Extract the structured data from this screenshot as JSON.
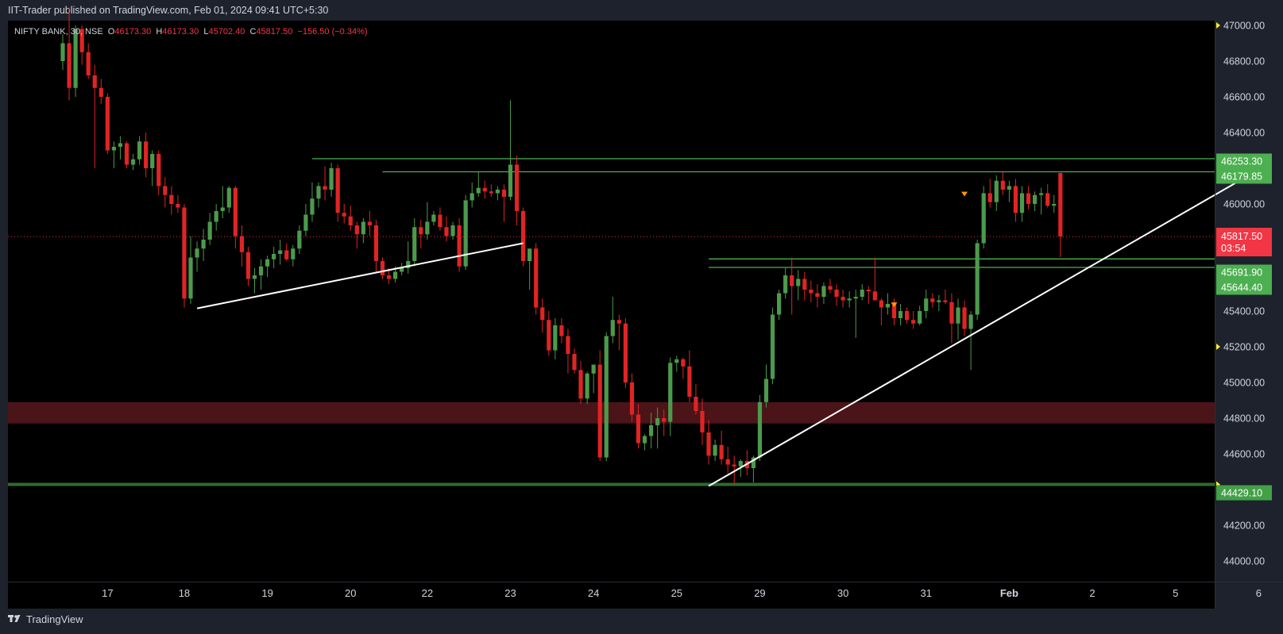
{
  "header": {
    "published_by": "IIT-Trader published on TradingView.com, Feb 01, 2024 09:41 UTC+5:30"
  },
  "legend": {
    "symbol": "NIFTY BANK, 30, NSE",
    "o_label": "O",
    "o": "46173.30",
    "h_label": "H",
    "h": "46173.30",
    "l_label": "L",
    "l": "45702.40",
    "c_label": "C",
    "c": "45817.50",
    "change": "−156.50 (−0.34%)"
  },
  "footer": {
    "brand": "TradingView",
    "logo_icon": "tradingview-logo-icon"
  },
  "colors": {
    "background": "#000000",
    "frame": "#1e222d",
    "up": "#4c9a4c",
    "down": "#e02424",
    "level": "#4caf50",
    "zone": "#4a1418",
    "trendline": "#ffffff",
    "price_tag": "#f23645"
  },
  "chart_data": {
    "type": "candlestick",
    "ylim": [
      44000,
      47000
    ],
    "y_ticks": [
      "47000.00",
      "46800.00",
      "46600.00",
      "46400.00",
      "46200.00",
      "46000.00",
      "45800.00",
      "45600.00",
      "45400.00",
      "45200.00",
      "45000.00",
      "44800.00",
      "44600.00",
      "44400.00",
      "44200.00",
      "44000.00"
    ],
    "x_ticks": [
      {
        "label": "17",
        "i": 7
      },
      {
        "label": "18",
        "i": 19
      },
      {
        "label": "19",
        "i": 32
      },
      {
        "label": "20",
        "i": 45
      },
      {
        "label": "22",
        "i": 57
      },
      {
        "label": "23",
        "i": 70
      },
      {
        "label": "24",
        "i": 83
      },
      {
        "label": "25",
        "i": 96
      },
      {
        "label": "29",
        "i": 109
      },
      {
        "label": "30",
        "i": 122
      },
      {
        "label": "31",
        "i": 135
      },
      {
        "label": "Feb",
        "i": 148
      },
      {
        "label": "2",
        "i": 161
      },
      {
        "label": "5",
        "i": 174
      },
      {
        "label": "6",
        "i": 187
      }
    ],
    "price_labels": [
      {
        "text": "46253.30",
        "value": 46253.3,
        "type": "level"
      },
      {
        "text": "46179.85",
        "value": 46179.85,
        "type": "level"
      },
      {
        "text": "45817.50",
        "value": 45817.5,
        "type": "current",
        "countdown": "03:54"
      },
      {
        "text": "45691.90",
        "value": 45691.9,
        "type": "level"
      },
      {
        "text": "45644.40",
        "value": 45644.4,
        "type": "level"
      },
      {
        "text": "44429.10",
        "value": 44429.1,
        "type": "level"
      }
    ],
    "horizontal_levels": [
      {
        "value": 46253.3,
        "from_i": 39
      },
      {
        "value": 46179.85,
        "from_i": 50
      },
      {
        "value": 45691.9,
        "from_i": 101
      },
      {
        "value": 45644.4,
        "from_i": 101
      },
      {
        "value": 44429.1,
        "from_i": -1
      }
    ],
    "zone": {
      "from": 44770,
      "to": 44890
    },
    "current_price": 45817.5,
    "trendlines": [
      {
        "i1": 21,
        "v1": 45415,
        "i2": 72,
        "v2": 45780
      },
      {
        "i1": 101,
        "v1": 44420,
        "i2": 184,
        "v2": 46130
      }
    ],
    "markers": [
      {
        "i": 130,
        "value": 45435
      },
      {
        "i": 141,
        "value": 46055
      }
    ],
    "candles": [
      [
        46800,
        46950,
        46750,
        46900
      ],
      [
        46900,
        47100,
        46580,
        46650
      ],
      [
        46650,
        47000,
        46600,
        46980
      ],
      [
        46980,
        47000,
        46780,
        46850
      ],
      [
        46850,
        46900,
        46700,
        46720
      ],
      [
        46720,
        46780,
        46200,
        46650
      ],
      [
        46650,
        46700,
        46560,
        46600
      ],
      [
        46600,
        46620,
        46280,
        46300
      ],
      [
        46300,
        46350,
        46200,
        46320
      ],
      [
        46320,
        46380,
        46250,
        46340
      ],
      [
        46340,
        46350,
        46200,
        46220
      ],
      [
        46220,
        46280,
        46190,
        46250
      ],
      [
        46250,
        46380,
        46220,
        46350
      ],
      [
        46350,
        46400,
        46150,
        46200
      ],
      [
        46200,
        46300,
        46100,
        46280
      ],
      [
        46280,
        46300,
        46050,
        46100
      ],
      [
        46100,
        46150,
        45980,
        46050
      ],
      [
        46050,
        46100,
        45940,
        46000
      ],
      [
        46000,
        46050,
        45950,
        45980
      ],
      [
        45980,
        46000,
        45420,
        45470
      ],
      [
        45470,
        45820,
        45440,
        45700
      ],
      [
        45700,
        45790,
        45620,
        45750
      ],
      [
        45750,
        45860,
        45680,
        45800
      ],
      [
        45800,
        45950,
        45770,
        45900
      ],
      [
        45900,
        46000,
        45850,
        45960
      ],
      [
        45960,
        46100,
        45920,
        45980
      ],
      [
        45980,
        46100,
        45950,
        46090
      ],
      [
        46090,
        46100,
        45750,
        45820
      ],
      [
        45820,
        45880,
        45650,
        45730
      ],
      [
        45730,
        45760,
        45540,
        45580
      ],
      [
        45580,
        45640,
        45500,
        45600
      ],
      [
        45600,
        45690,
        45520,
        45650
      ],
      [
        45650,
        45710,
        45590,
        45690
      ],
      [
        45690,
        45760,
        45640,
        45720
      ],
      [
        45720,
        45800,
        45660,
        45740
      ],
      [
        45740,
        45780,
        45680,
        45690
      ],
      [
        45690,
        45770,
        45650,
        45750
      ],
      [
        45750,
        45880,
        45720,
        45850
      ],
      [
        45850,
        46000,
        45820,
        45940
      ],
      [
        45940,
        46120,
        45900,
        46030
      ],
      [
        46030,
        46120,
        45980,
        46100
      ],
      [
        46100,
        46210,
        46020,
        46080
      ],
      [
        46080,
        46230,
        46040,
        46200
      ],
      [
        46200,
        46220,
        45900,
        45950
      ],
      [
        45950,
        46000,
        45890,
        45930
      ],
      [
        45930,
        45990,
        45850,
        45880
      ],
      [
        45880,
        45900,
        45750,
        45830
      ],
      [
        45830,
        45920,
        45780,
        45900
      ],
      [
        45900,
        45960,
        45820,
        45880
      ],
      [
        45880,
        45910,
        45620,
        45680
      ],
      [
        45680,
        45700,
        45580,
        45600
      ],
      [
        45600,
        45640,
        45550,
        45580
      ],
      [
        45580,
        45650,
        45560,
        45620
      ],
      [
        45620,
        45670,
        45600,
        45640
      ],
      [
        45640,
        45790,
        45610,
        45680
      ],
      [
        45680,
        45920,
        45650,
        45870
      ],
      [
        45870,
        45910,
        45750,
        45830
      ],
      [
        45830,
        46010,
        45800,
        45900
      ],
      [
        45900,
        45960,
        45880,
        45940
      ],
      [
        45940,
        45980,
        45850,
        45870
      ],
      [
        45870,
        45930,
        45790,
        45820
      ],
      [
        45820,
        45900,
        45800,
        45880
      ],
      [
        45880,
        45920,
        45620,
        45650
      ],
      [
        45650,
        46050,
        45630,
        46020
      ],
      [
        46020,
        46120,
        45980,
        46060
      ],
      [
        46060,
        46180,
        46040,
        46090
      ],
      [
        46090,
        46130,
        46030,
        46070
      ],
      [
        46070,
        46110,
        46040,
        46060
      ],
      [
        46060,
        46100,
        46020,
        46080
      ],
      [
        46080,
        46110,
        45900,
        46040
      ],
      [
        46040,
        46580,
        46020,
        46220
      ],
      [
        46220,
        46270,
        45880,
        45960
      ],
      [
        45960,
        45980,
        45650,
        45680
      ],
      [
        45680,
        45720,
        45520,
        45750
      ],
      [
        45750,
        45780,
        45380,
        45420
      ],
      [
        45420,
        45470,
        45280,
        45350
      ],
      [
        45350,
        45400,
        45150,
        45180
      ],
      [
        45180,
        45360,
        45130,
        45320
      ],
      [
        45320,
        45360,
        45220,
        45260
      ],
      [
        45260,
        45300,
        45050,
        45160
      ],
      [
        45160,
        45190,
        45050,
        45070
      ],
      [
        45070,
        45120,
        44880,
        44910
      ],
      [
        44910,
        45060,
        44880,
        45050
      ],
      [
        45050,
        45100,
        44940,
        45100
      ],
      [
        45100,
        45180,
        44560,
        44580
      ],
      [
        44580,
        45280,
        44560,
        45260
      ],
      [
        45260,
        45480,
        45220,
        45350
      ],
      [
        45350,
        45380,
        45180,
        45330
      ],
      [
        45330,
        45360,
        44970,
        45000
      ],
      [
        45000,
        45050,
        44780,
        44820
      ],
      [
        44820,
        44880,
        44630,
        44660
      ],
      [
        44660,
        44710,
        44620,
        44700
      ],
      [
        44700,
        44830,
        44630,
        44760
      ],
      [
        44760,
        44860,
        44630,
        44800
      ],
      [
        44800,
        44850,
        44700,
        44780
      ],
      [
        44780,
        45140,
        44700,
        45110
      ],
      [
        45110,
        45150,
        45060,
        45130
      ],
      [
        45130,
        45140,
        45020,
        45090
      ],
      [
        45090,
        45180,
        44890,
        44920
      ],
      [
        44920,
        44990,
        44820,
        44840
      ],
      [
        44840,
        44910,
        44650,
        44720
      ],
      [
        44720,
        44790,
        44540,
        44590
      ],
      [
        44590,
        44680,
        44560,
        44650
      ],
      [
        44650,
        44730,
        44540,
        44570
      ],
      [
        44570,
        44640,
        44490,
        44540
      ],
      [
        44540,
        44590,
        44430,
        44530
      ],
      [
        44530,
        44570,
        44470,
        44560
      ],
      [
        44560,
        44620,
        44480,
        44520
      ],
      [
        44520,
        44590,
        44440,
        44580
      ],
      [
        44580,
        44930,
        44560,
        44890
      ],
      [
        44890,
        45100,
        44860,
        45020
      ],
      [
        45020,
        45420,
        44990,
        45380
      ],
      [
        45380,
        45520,
        45350,
        45500
      ],
      [
        45500,
        45640,
        45470,
        45600
      ],
      [
        45600,
        45700,
        45380,
        45540
      ],
      [
        45540,
        45630,
        45460,
        45580
      ],
      [
        45580,
        45620,
        45460,
        45520
      ],
      [
        45520,
        45570,
        45450,
        45500
      ],
      [
        45500,
        45550,
        45420,
        45480
      ],
      [
        45480,
        45560,
        45440,
        45540
      ],
      [
        45540,
        45580,
        45500,
        45520
      ],
      [
        45520,
        45550,
        45430,
        45480
      ],
      [
        45480,
        45520,
        45420,
        45460
      ],
      [
        45460,
        45510,
        45420,
        45470
      ],
      [
        45470,
        45520,
        45250,
        45480
      ],
      [
        45480,
        45550,
        45460,
        45520
      ],
      [
        45520,
        45540,
        45440,
        45510
      ],
      [
        45510,
        45700,
        45460,
        45460
      ],
      [
        45460,
        45470,
        45320,
        45420
      ],
      [
        45420,
        45500,
        45380,
        45440
      ],
      [
        45440,
        45470,
        45320,
        45360
      ],
      [
        45360,
        45440,
        45320,
        45400
      ],
      [
        45400,
        45420,
        45330,
        45350
      ],
      [
        45350,
        45400,
        45300,
        45330
      ],
      [
        45330,
        45430,
        45320,
        45400
      ],
      [
        45400,
        45520,
        45360,
        45470
      ],
      [
        45470,
        45500,
        45420,
        45450
      ],
      [
        45450,
        45490,
        45400,
        45460
      ],
      [
        45460,
        45520,
        45440,
        45450
      ],
      [
        45450,
        45500,
        45220,
        45330
      ],
      [
        45330,
        45470,
        45240,
        45420
      ],
      [
        45420,
        45460,
        45260,
        45300
      ],
      [
        45300,
        45400,
        45070,
        45380
      ],
      [
        45380,
        45800,
        45350,
        45780
      ],
      [
        45780,
        46100,
        45750,
        46060
      ],
      [
        46060,
        46140,
        45980,
        46010
      ],
      [
        46010,
        46160,
        45960,
        46130
      ],
      [
        46130,
        46180,
        46050,
        46080
      ],
      [
        46080,
        46130,
        46010,
        46100
      ],
      [
        46100,
        46140,
        45900,
        45950
      ],
      [
        45950,
        46100,
        45900,
        46060
      ],
      [
        46060,
        46100,
        45970,
        46000
      ],
      [
        46000,
        46070,
        45960,
        46050
      ],
      [
        46050,
        46090,
        45940,
        46060
      ],
      [
        46060,
        46110,
        45980,
        45990
      ],
      [
        45990,
        46050,
        45950,
        46000
      ],
      [
        46173.3,
        46173.3,
        45702.4,
        45817.5
      ]
    ]
  }
}
